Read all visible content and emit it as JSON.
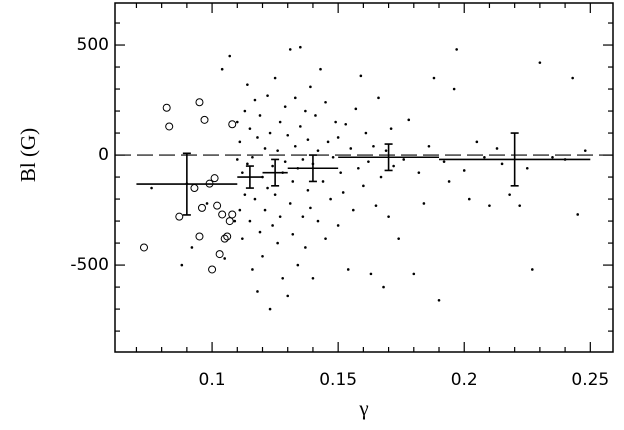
{
  "chart_data": {
    "type": "scatter",
    "xlabel": "γ",
    "ylabel": "Bl (G)",
    "xlim": [
      0.0615,
      0.259
    ],
    "ylim": [
      -895,
      691
    ],
    "xticks": [
      0.1,
      0.15,
      0.2,
      0.25
    ],
    "yticks": [
      -500,
      0,
      500
    ],
    "xminorticks": [
      0.07,
      0.08,
      0.09,
      0.11,
      0.12,
      0.13,
      0.14,
      0.16,
      0.17,
      0.18,
      0.19,
      0.21,
      0.22,
      0.23,
      0.24
    ],
    "yminorticks": [
      -800,
      -700,
      -600,
      -400,
      -300,
      -200,
      -100,
      100,
      200,
      300,
      400,
      600
    ],
    "hline": 0,
    "series": [
      {
        "marker": "dot",
        "color": "#000000",
        "x": [
          0.076,
          0.088,
          0.09,
          0.092,
          0.098,
          0.104,
          0.105,
          0.107,
          0.109,
          0.11,
          0.11,
          0.111,
          0.111,
          0.112,
          0.112,
          0.113,
          0.113,
          0.114,
          0.114,
          0.115,
          0.115,
          0.116,
          0.116,
          0.117,
          0.117,
          0.118,
          0.118,
          0.119,
          0.119,
          0.12,
          0.12,
          0.121,
          0.121,
          0.122,
          0.122,
          0.123,
          0.123,
          0.124,
          0.124,
          0.125,
          0.125,
          0.126,
          0.126,
          0.127,
          0.127,
          0.128,
          0.128,
          0.129,
          0.129,
          0.13,
          0.13,
          0.131,
          0.131,
          0.132,
          0.132,
          0.133,
          0.133,
          0.134,
          0.134,
          0.135,
          0.135,
          0.136,
          0.136,
          0.137,
          0.137,
          0.138,
          0.138,
          0.139,
          0.139,
          0.14,
          0.14,
          0.141,
          0.142,
          0.142,
          0.143,
          0.144,
          0.145,
          0.145,
          0.146,
          0.147,
          0.148,
          0.149,
          0.15,
          0.15,
          0.151,
          0.152,
          0.153,
          0.154,
          0.155,
          0.156,
          0.157,
          0.158,
          0.159,
          0.16,
          0.161,
          0.162,
          0.163,
          0.164,
          0.165,
          0.166,
          0.167,
          0.168,
          0.169,
          0.17,
          0.171,
          0.172,
          0.174,
          0.176,
          0.178,
          0.18,
          0.182,
          0.184,
          0.186,
          0.188,
          0.19,
          0.192,
          0.194,
          0.196,
          0.197,
          0.2,
          0.202,
          0.205,
          0.208,
          0.21,
          0.213,
          0.215,
          0.218,
          0.222,
          0.225,
          0.227,
          0.23,
          0.235,
          0.24,
          0.243,
          0.245,
          0.248
        ],
        "values": [
          -150,
          -500,
          -130,
          -420,
          -220,
          390,
          -470,
          450,
          -300,
          -20,
          150,
          -250,
          60,
          -380,
          -80,
          200,
          -180,
          320,
          -40,
          -300,
          120,
          -520,
          -10,
          250,
          -200,
          -620,
          80,
          -350,
          180,
          -100,
          -460,
          30,
          -250,
          270,
          -150,
          -700,
          100,
          -320,
          -50,
          350,
          -180,
          -400,
          20,
          150,
          -280,
          -560,
          -80,
          220,
          -30,
          -640,
          90,
          -220,
          480,
          -120,
          -360,
          40,
          260,
          -500,
          -60,
          490,
          130,
          -280,
          -20,
          200,
          -420,
          70,
          -160,
          310,
          -240,
          -40,
          -560,
          180,
          -300,
          20,
          390,
          -120,
          240,
          -380,
          60,
          -200,
          -10,
          150,
          -320,
          80,
          -80,
          -170,
          140,
          -520,
          30,
          -250,
          210,
          -60,
          360,
          -140,
          100,
          -30,
          -540,
          40,
          -230,
          260,
          -100,
          -600,
          20,
          -280,
          120,
          -50,
          -380,
          -20,
          160,
          -540,
          -80,
          -220,
          40,
          350,
          -660,
          -30,
          -120,
          300,
          480,
          -70,
          -200,
          60,
          -10,
          -230,
          30,
          -40,
          -180,
          -230,
          -60,
          -520,
          420,
          -10,
          -20,
          350,
          -270,
          20
        ]
      },
      {
        "marker": "open-circle",
        "color": "#000000",
        "x": [
          0.073,
          0.082,
          0.083,
          0.087,
          0.093,
          0.095,
          0.096,
          0.097,
          0.095,
          0.099,
          0.101,
          0.1,
          0.102,
          0.103,
          0.104,
          0.105,
          0.106,
          0.107,
          0.108,
          0.108
        ],
        "values": [
          -420,
          215,
          130,
          -280,
          -150,
          240,
          -240,
          160,
          -370,
          -130,
          -105,
          -520,
          -230,
          -450,
          -270,
          -380,
          -370,
          -300,
          -270,
          140
        ]
      }
    ],
    "binned": {
      "x0": [
        0.07,
        0.11,
        0.12,
        0.13,
        0.15,
        0.19
      ],
      "x1": [
        0.11,
        0.12,
        0.13,
        0.15,
        0.19,
        0.25
      ],
      "xc": [
        0.09,
        0.115,
        0.125,
        0.14,
        0.17,
        0.22
      ],
      "values": [
        -132,
        -100,
        -80,
        -60,
        -10,
        -20
      ],
      "errors": [
        140,
        50,
        60,
        60,
        60,
        120
      ]
    }
  }
}
